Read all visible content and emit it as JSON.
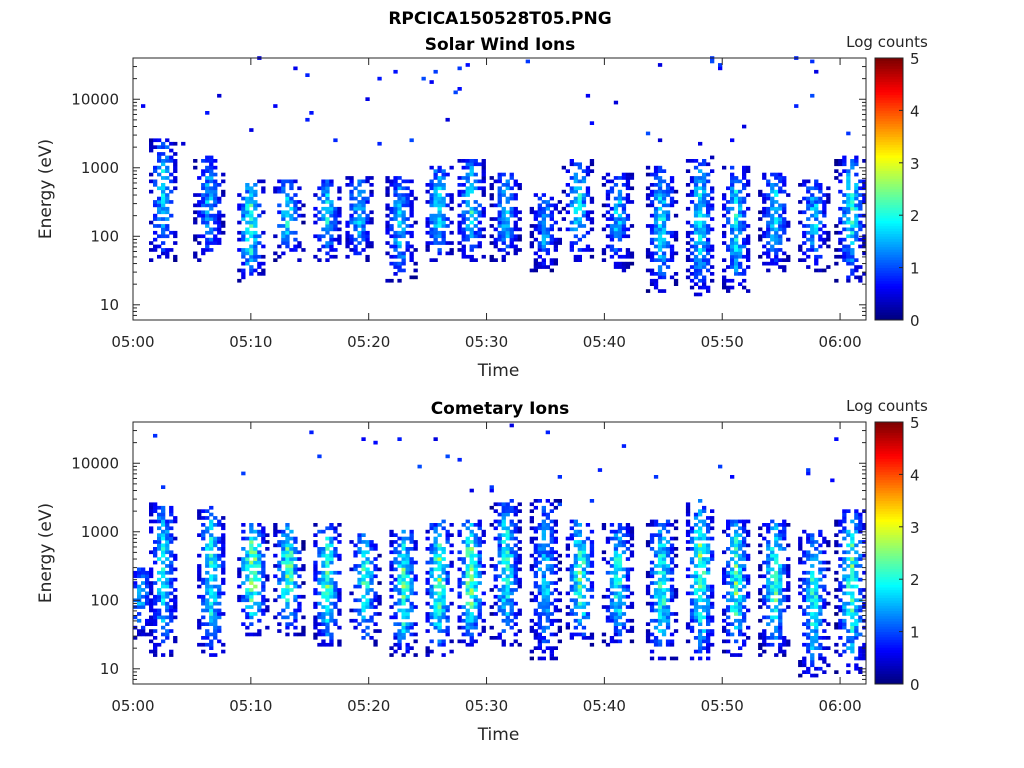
{
  "chart_data": {
    "type": "heatmap",
    "title": "RPCICA150528T05.PNG",
    "colormap": "jet",
    "panels": [
      {
        "subtitle": "Solar Wind Ions",
        "xlabel": "Time",
        "ylabel": "Energy (eV)",
        "xticks": [
          "05:00",
          "05:10",
          "05:20",
          "05:30",
          "05:40",
          "05:50",
          "06:00"
        ],
        "xtick_minutes": [
          0,
          10,
          20,
          30,
          40,
          50,
          60
        ],
        "xlim_minutes": [
          0,
          62.2
        ],
        "yticks": [
          "10",
          "100",
          "1000",
          "10000"
        ],
        "ytick_values": [
          10,
          100,
          1000,
          10000
        ],
        "ylim": [
          6,
          40000
        ],
        "yscale": "log",
        "colorbar": {
          "label": "Log counts",
          "ticks": [
            "0",
            "1",
            "2",
            "3",
            "4",
            "5"
          ],
          "range": [
            0,
            5
          ]
        },
        "bursts": [
          {
            "t": 2.4,
            "emin": 40,
            "emax": 2500,
            "peak": 1.8
          },
          {
            "t": 6.3,
            "emin": 40,
            "emax": 1500,
            "peak": 1.6
          },
          {
            "t": 9.8,
            "emin": 20,
            "emax": 600,
            "peak": 2.4
          },
          {
            "t": 13,
            "emin": 40,
            "emax": 600,
            "peak": 2.0
          },
          {
            "t": 16.3,
            "emin": 40,
            "emax": 600,
            "peak": 1.9
          },
          {
            "t": 19,
            "emin": 40,
            "emax": 700,
            "peak": 1.8
          },
          {
            "t": 22.5,
            "emin": 20,
            "emax": 700,
            "peak": 1.8
          },
          {
            "t": 25.8,
            "emin": 40,
            "emax": 1000,
            "peak": 2.0
          },
          {
            "t": 28.5,
            "emin": 40,
            "emax": 1200,
            "peak": 2.0
          },
          {
            "t": 31.5,
            "emin": 40,
            "emax": 800,
            "peak": 1.8
          },
          {
            "t": 34.8,
            "emin": 30,
            "emax": 400,
            "peak": 1.6
          },
          {
            "t": 37.6,
            "emin": 40,
            "emax": 1200,
            "peak": 2.0
          },
          {
            "t": 41,
            "emin": 30,
            "emax": 800,
            "peak": 1.7
          },
          {
            "t": 44.7,
            "emin": 15,
            "emax": 1000,
            "peak": 2.0
          },
          {
            "t": 48,
            "emin": 12,
            "emax": 1500,
            "peak": 2.0
          },
          {
            "t": 51,
            "emin": 15,
            "emax": 1000,
            "peak": 2.0
          },
          {
            "t": 54.3,
            "emin": 30,
            "emax": 800,
            "peak": 1.9
          },
          {
            "t": 57.6,
            "emin": 30,
            "emax": 600,
            "peak": 1.8
          },
          {
            "t": 60.8,
            "emin": 20,
            "emax": 1500,
            "peak": 2.1
          }
        ]
      },
      {
        "subtitle": "Cometary Ions",
        "xlabel": "Time",
        "ylabel": "Energy (eV)",
        "xticks": [
          "05:00",
          "05:10",
          "05:20",
          "05:30",
          "05:40",
          "05:50",
          "06:00"
        ],
        "xtick_minutes": [
          0,
          10,
          20,
          30,
          40,
          50,
          60
        ],
        "xlim_minutes": [
          0,
          62.2
        ],
        "yticks": [
          "10",
          "100",
          "1000",
          "10000"
        ],
        "ytick_values": [
          10,
          100,
          1000,
          10000
        ],
        "ylim": [
          6,
          40000
        ],
        "yscale": "log",
        "colorbar": {
          "label": "Log counts",
          "ticks": [
            "0",
            "1",
            "2",
            "3",
            "4",
            "5"
          ],
          "range": [
            0,
            5
          ]
        },
        "bursts": [
          {
            "t": 0.5,
            "emin": 25,
            "emax": 300,
            "peak": 1.5
          },
          {
            "t": 2.4,
            "emin": 15,
            "emax": 3000,
            "peak": 2.0
          },
          {
            "t": 6.5,
            "emin": 15,
            "emax": 2000,
            "peak": 2.3
          },
          {
            "t": 10,
            "emin": 30,
            "emax": 1200,
            "peak": 3.0
          },
          {
            "t": 13,
            "emin": 30,
            "emax": 1200,
            "peak": 2.7
          },
          {
            "t": 16.3,
            "emin": 20,
            "emax": 1200,
            "peak": 2.6
          },
          {
            "t": 19.5,
            "emin": 20,
            "emax": 1000,
            "peak": 2.3
          },
          {
            "t": 22.8,
            "emin": 15,
            "emax": 1000,
            "peak": 2.5
          },
          {
            "t": 25.8,
            "emin": 15,
            "emax": 1500,
            "peak": 2.6
          },
          {
            "t": 28.5,
            "emin": 20,
            "emax": 1500,
            "peak": 2.8
          },
          {
            "t": 31.5,
            "emin": 20,
            "emax": 3000,
            "peak": 2.2
          },
          {
            "t": 34.8,
            "emin": 12,
            "emax": 3000,
            "peak": 1.8
          },
          {
            "t": 37.8,
            "emin": 20,
            "emax": 1500,
            "peak": 2.5
          },
          {
            "t": 41,
            "emin": 20,
            "emax": 1200,
            "peak": 2.2
          },
          {
            "t": 44.7,
            "emin": 12,
            "emax": 1500,
            "peak": 2.4
          },
          {
            "t": 48,
            "emin": 12,
            "emax": 3000,
            "peak": 2.6
          },
          {
            "t": 51,
            "emin": 15,
            "emax": 1500,
            "peak": 2.4
          },
          {
            "t": 54.3,
            "emin": 15,
            "emax": 1500,
            "peak": 2.5
          },
          {
            "t": 57.6,
            "emin": 7,
            "emax": 1000,
            "peak": 2.2
          },
          {
            "t": 60.8,
            "emin": 8,
            "emax": 2000,
            "peak": 2.6
          }
        ]
      }
    ]
  }
}
